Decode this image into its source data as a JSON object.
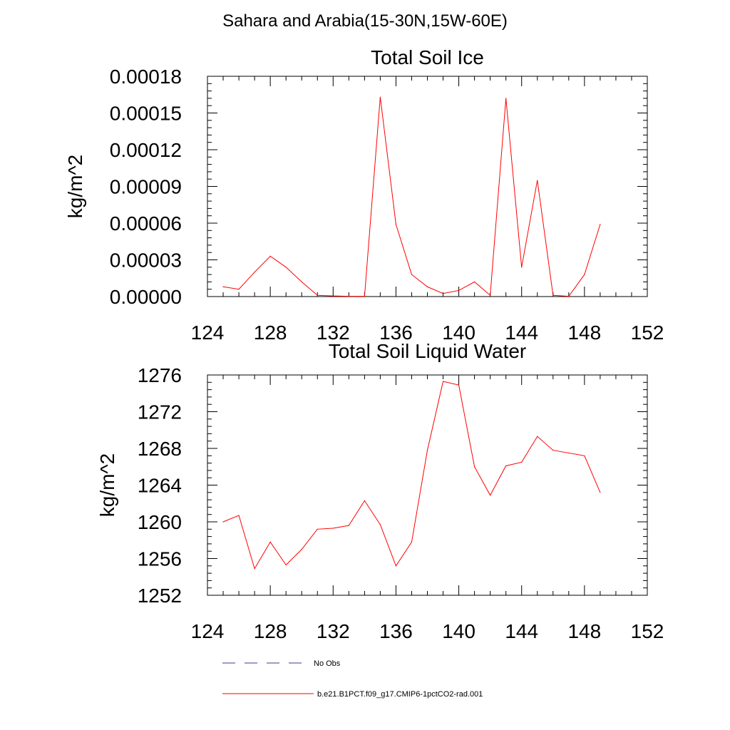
{
  "title": "Sahara and Arabia(15-30N,15W-60E)",
  "colors": {
    "model": "#ff0000",
    "obs": "#3a3a8c",
    "axis": "#000000"
  },
  "legend": [
    {
      "label": "No Obs",
      "style": "dashed",
      "color": "#3a3a8c"
    },
    {
      "label": "b.e21.B1PCT.f09_g17.CMIP6-1pctCO2-rad.001",
      "style": "solid",
      "color": "#ff0000"
    }
  ],
  "chart_data": [
    {
      "type": "line",
      "title": "Total Soil Ice",
      "xlabel": "",
      "ylabel": "kg/m^2",
      "xlim": [
        124,
        152
      ],
      "ylim": [
        0,
        0.00018
      ],
      "xticks": [
        "124",
        "128",
        "132",
        "136",
        "140",
        "144",
        "148",
        "152"
      ],
      "yticks": [
        "0.00000",
        "0.00003",
        "0.00006",
        "0.00009",
        "0.00012",
        "0.00015",
        "0.00018"
      ],
      "series": [
        {
          "color": "#ff0000",
          "x": [
            125,
            126,
            127,
            128,
            129,
            130,
            131,
            132,
            133,
            134,
            135,
            136,
            137,
            138,
            139,
            140,
            141,
            142,
            143,
            144,
            145,
            146,
            147,
            148,
            149
          ],
          "y": [
            8e-06,
            6e-06,
            2e-05,
            3.3e-05,
            2.4e-05,
            1.2e-05,
            1e-06,
            5e-07,
            2e-07,
            2e-07,
            0.000163,
            5.9e-05,
            1.8e-05,
            8e-06,
            2.5e-06,
            5e-06,
            1.2e-05,
            1e-06,
            0.000162,
            2.4e-05,
            9.5e-05,
            1e-06,
            2e-07,
            1.8e-05,
            5.9e-05
          ]
        }
      ]
    },
    {
      "type": "line",
      "title": "Total Soil Liquid Water",
      "xlabel": "",
      "ylabel": "kg/m^2",
      "xlim": [
        124,
        152
      ],
      "ylim": [
        1252,
        1276
      ],
      "xticks": [
        "124",
        "128",
        "132",
        "136",
        "140",
        "144",
        "148",
        "152"
      ],
      "yticks": [
        "1252",
        "1256",
        "1260",
        "1264",
        "1268",
        "1272",
        "1276"
      ],
      "series": [
        {
          "color": "#ff0000",
          "x": [
            125,
            126,
            127,
            128,
            129,
            130,
            131,
            132,
            133,
            134,
            135,
            136,
            137,
            138,
            139,
            140,
            141,
            142,
            143,
            144,
            145,
            146,
            147,
            148,
            149
          ],
          "y": [
            1260.0,
            1260.7,
            1254.9,
            1257.8,
            1255.3,
            1257.0,
            1259.2,
            1259.3,
            1259.6,
            1262.3,
            1259.7,
            1255.2,
            1257.8,
            1267.8,
            1275.3,
            1274.9,
            1266.0,
            1262.9,
            1266.1,
            1266.5,
            1269.3,
            1267.8,
            1267.5,
            1267.2,
            1263.2
          ]
        }
      ]
    }
  ]
}
